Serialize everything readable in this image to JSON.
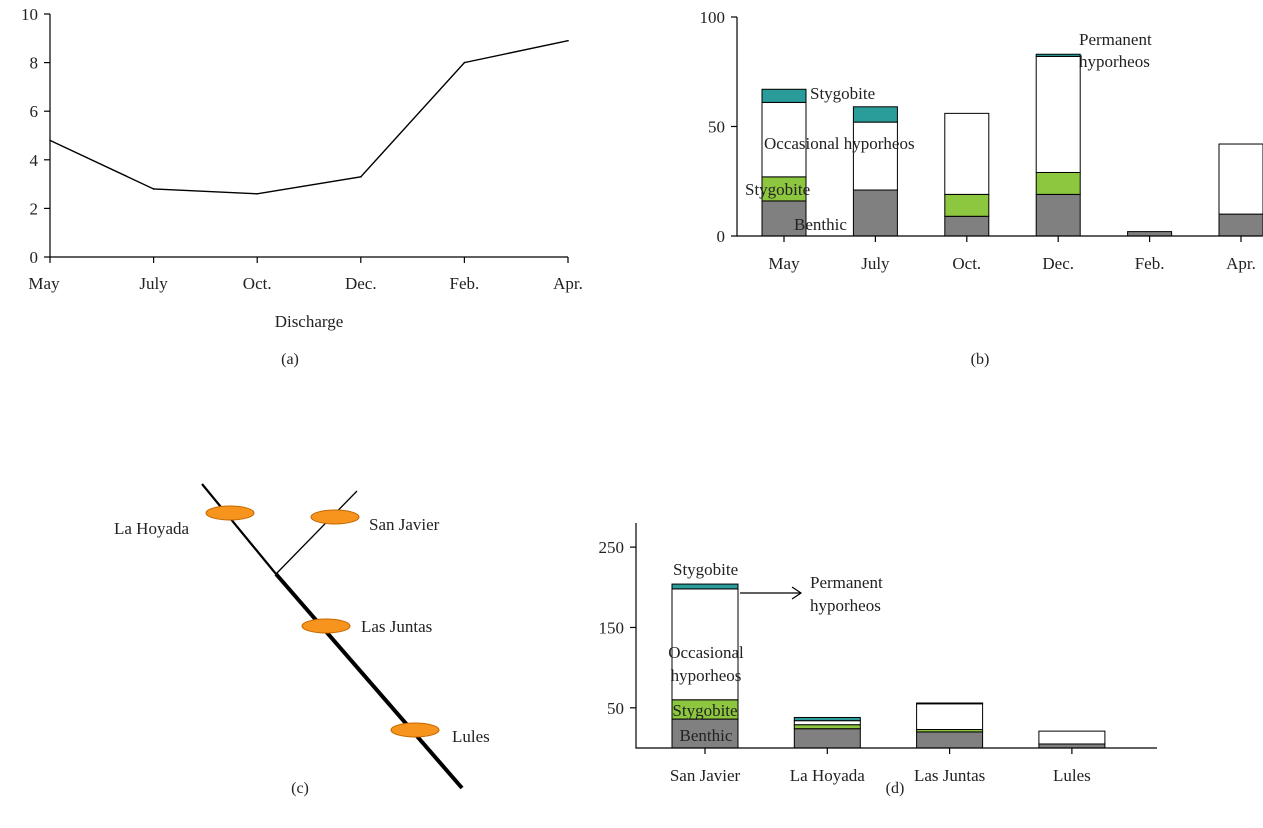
{
  "chart_data": [
    {
      "type": "line",
      "panel_label": "(a)",
      "xlabel": "Discharge",
      "ylabel": "",
      "categories": [
        "May",
        "July",
        "Oct.",
        "Dec.",
        "Feb.",
        "Apr."
      ],
      "values": [
        4.8,
        2.8,
        2.6,
        3.3,
        8.0,
        8.9
      ],
      "ylim": [
        0,
        10
      ],
      "yticks": [
        0,
        2,
        4,
        6,
        8,
        10
      ],
      "grid": false,
      "legend": "none"
    },
    {
      "type": "bar",
      "stacked": true,
      "panel_label": "(b)",
      "categories": [
        "May",
        "July",
        "Oct.",
        "Dec.",
        "Feb.",
        "Apr."
      ],
      "ylim": [
        0,
        100
      ],
      "yticks": [
        0,
        50,
        100
      ],
      "series": [
        {
          "name": "Benthic",
          "color": "#808080",
          "values": [
            16,
            21,
            9,
            19,
            2,
            10
          ]
        },
        {
          "name": "Stygobite",
          "color": "#8dc63f",
          "values": [
            11,
            0,
            10,
            10,
            0,
            0
          ]
        },
        {
          "name": "Occasional hyporheos",
          "color": "#ffffff",
          "values": [
            34,
            31,
            37,
            53,
            0,
            32
          ]
        },
        {
          "name": "Permanent hyporheos",
          "color": "#2a9d9b",
          "values": [
            6,
            7,
            0,
            1,
            0,
            0
          ]
        }
      ],
      "annotations": {
        "benthic": "Benthic",
        "stygobite_low": "Stygobite",
        "occasional": "Occasional hyporheos",
        "stygobite_top": "Stygobite",
        "permanent_1": "Permanent",
        "permanent_2": "hyporheos"
      },
      "grid": false,
      "legend": "inline annotations"
    },
    {
      "type": "diagram",
      "panel_label": "(c)",
      "sites": [
        "La Hoyada",
        "San Javier",
        "Las Juntas",
        "Lules"
      ],
      "site_color": "#f7941d"
    },
    {
      "type": "bar",
      "stacked": true,
      "panel_label": "(d)",
      "categories": [
        "San Javier",
        "La Hoyada",
        "Las Juntas",
        "Lules"
      ],
      "ylim": [
        0,
        280
      ],
      "yticks": [
        50,
        150,
        250
      ],
      "series": [
        {
          "name": "Benthic",
          "color": "#808080",
          "values": [
            36,
            24,
            20,
            5
          ]
        },
        {
          "name": "Stygobite",
          "color": "#8dc63f",
          "values": [
            24,
            5,
            3,
            0
          ]
        },
        {
          "name": "Occasional hyporheos",
          "color": "#ffffff",
          "values": [
            138,
            5,
            32,
            16
          ]
        },
        {
          "name": "Permanent hyporheos",
          "color": "#2a9d9b",
          "values": [
            6,
            4,
            1,
            0
          ]
        }
      ],
      "annotations": {
        "stygobite_top": "Stygobite",
        "permanent_1": "Permanent",
        "permanent_2": "hyporheos",
        "occasional_1": "Occasional",
        "occasional_2": "hyporheos",
        "stygobite_low": "Stygobite",
        "benthic": "Benthic"
      },
      "grid": false,
      "legend": "inline annotations"
    }
  ]
}
